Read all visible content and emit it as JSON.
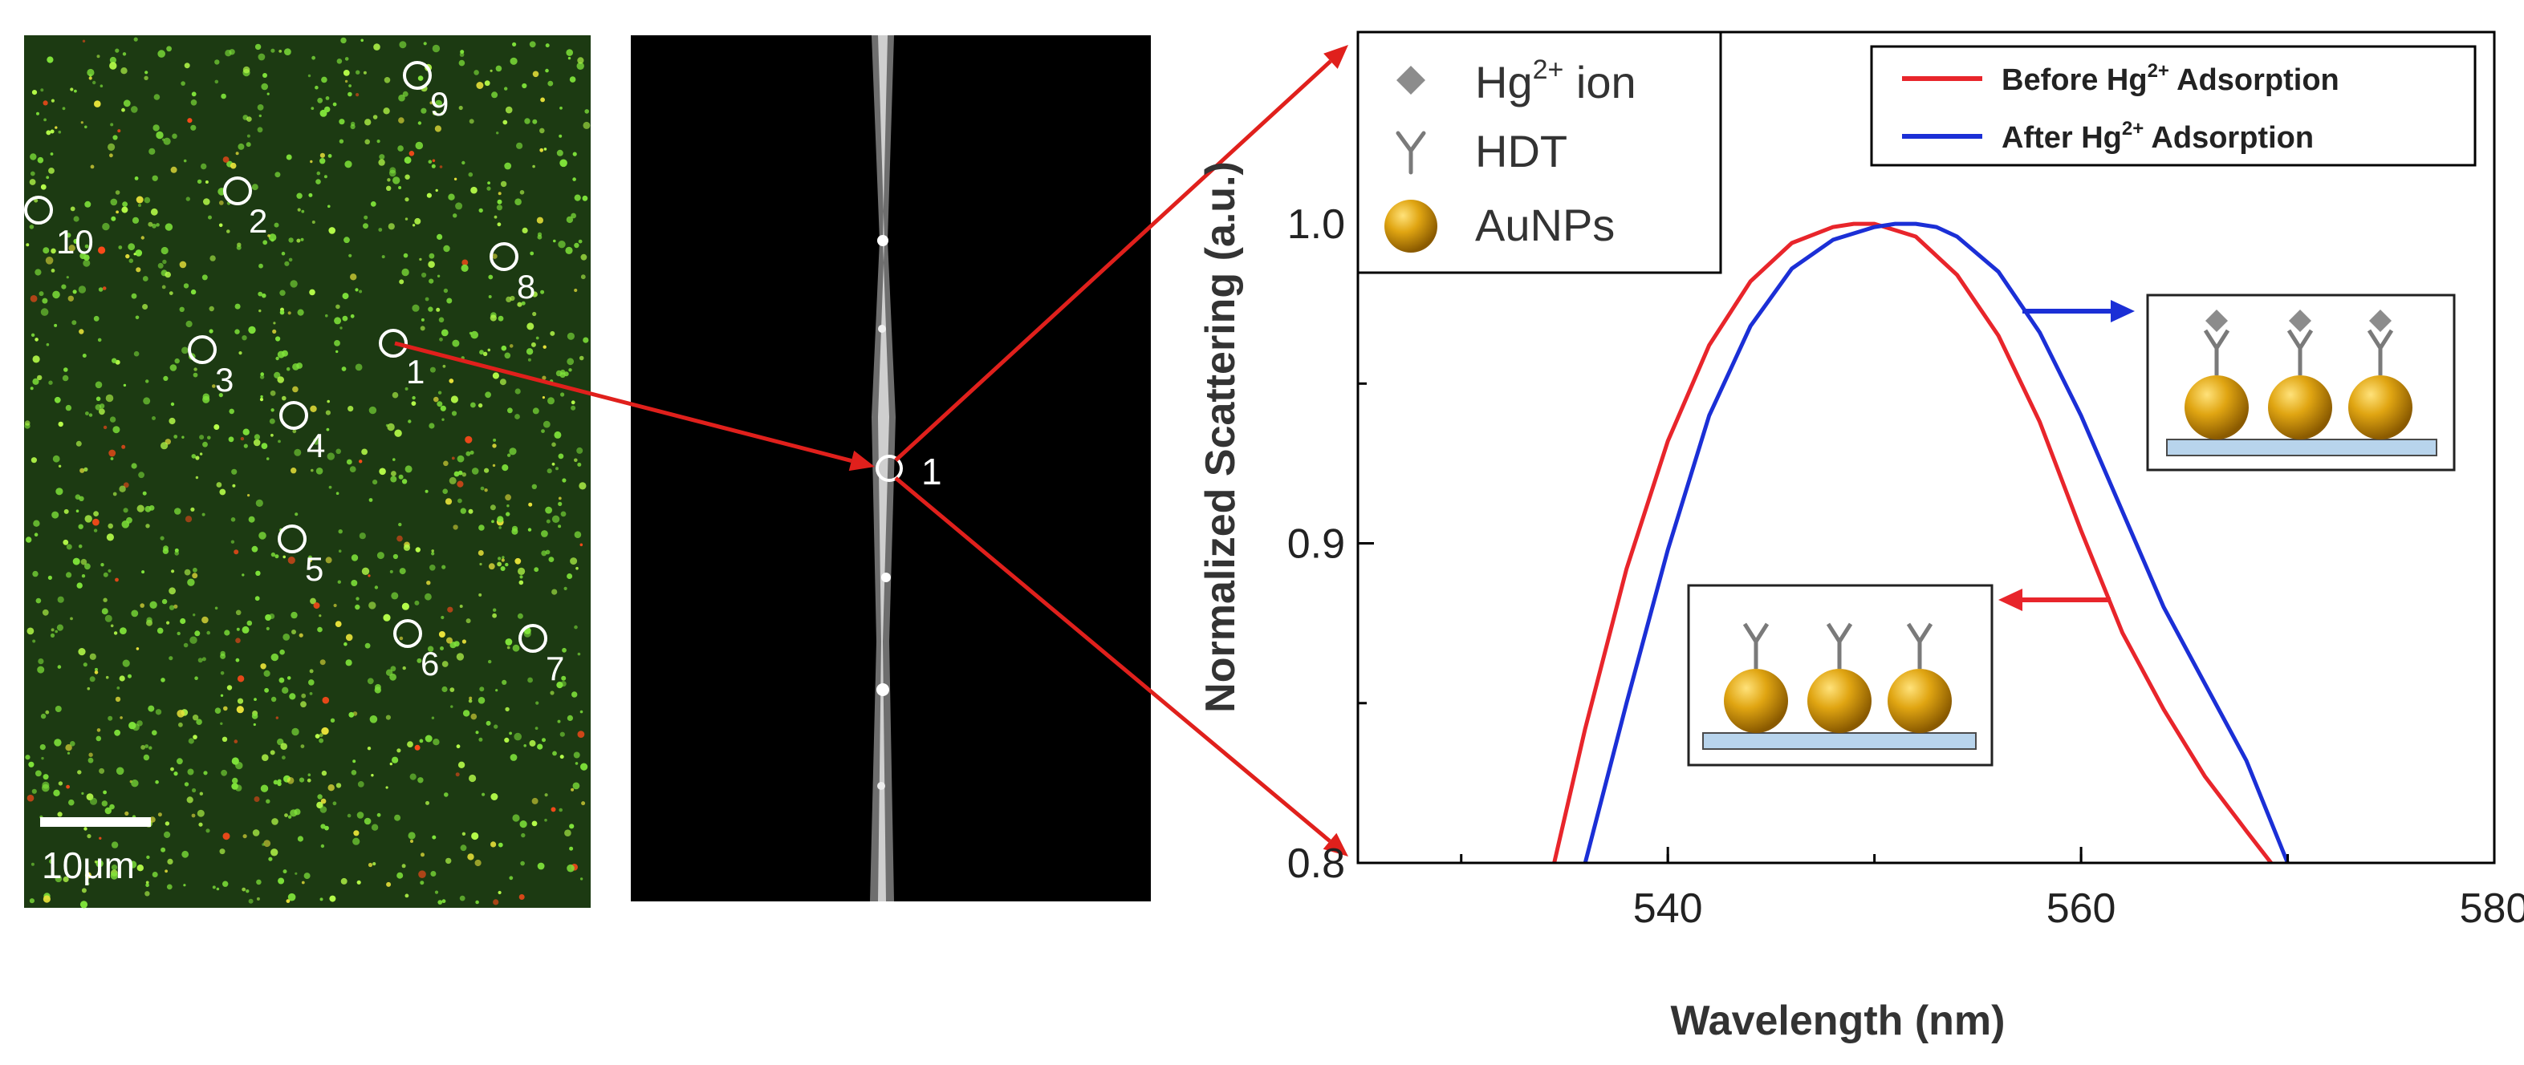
{
  "micrograph": {
    "scale_bar_label": "10μm",
    "particle_labels": [
      "1",
      "2",
      "3",
      "4",
      "5",
      "6",
      "7",
      "8",
      "9",
      "10"
    ],
    "background_color": "#1c3a12",
    "dot_colors": [
      "#7fe33a",
      "#b8ff4a",
      "#e8e23a",
      "#ff4a1a"
    ]
  },
  "darkfield": {
    "selected_label": "1",
    "background_color": "#000000"
  },
  "connector_color": "#e0201c",
  "legend_symbols": [
    {
      "label": "Hg²⁺ ion",
      "label_base": "Hg",
      "label_sup": "2+",
      "label_rest": " ion",
      "icon": "diamond-icon"
    },
    {
      "label": "HDT",
      "icon": "y-linker-icon"
    },
    {
      "label": "AuNPs",
      "icon": "gold-sphere-icon"
    }
  ],
  "chart_data": {
    "type": "line",
    "xlabel": "Wavelength (nm)",
    "ylabel": "Normalized Scattering (a.u.)",
    "xlim": [
      525,
      580
    ],
    "ylim": [
      0.8,
      1.06
    ],
    "xticks": [
      540,
      560,
      580
    ],
    "yticks": [
      0.8,
      0.9,
      1.0
    ],
    "xtick_labels": [
      "540",
      "560",
      "580"
    ],
    "ytick_labels": [
      "0.8",
      "0.9",
      "1.0"
    ],
    "grid": false,
    "legend_position": "top-right",
    "series": [
      {
        "name": "Before Hg²⁺ Adsorption",
        "color": "#e8252b",
        "x": [
          534.5,
          536,
          538,
          540,
          542,
          544,
          546,
          548,
          549,
          550,
          551,
          552,
          554,
          556,
          558,
          560,
          562,
          564,
          566,
          568,
          569.2
        ],
        "y": [
          0.8,
          0.842,
          0.892,
          0.932,
          0.962,
          0.982,
          0.994,
          0.999,
          1.0,
          1.0,
          0.998,
          0.996,
          0.984,
          0.965,
          0.938,
          0.904,
          0.872,
          0.848,
          0.827,
          0.81,
          0.8
        ]
      },
      {
        "name": "After Hg²⁺ Adsorption",
        "color": "#1b2fd6",
        "x": [
          536,
          538,
          540,
          542,
          544,
          546,
          548,
          550,
          551,
          552,
          553,
          554,
          556,
          558,
          560,
          562,
          564,
          566,
          568,
          570
        ],
        "y": [
          0.8,
          0.85,
          0.898,
          0.94,
          0.968,
          0.986,
          0.995,
          0.999,
          1.0,
          1.0,
          0.999,
          0.996,
          0.985,
          0.966,
          0.94,
          0.91,
          0.88,
          0.856,
          0.832,
          0.8
        ]
      }
    ],
    "legend": [
      {
        "base": "Before Hg",
        "sup": "2+",
        "rest": " Adsorption"
      },
      {
        "base": "After Hg",
        "sup": "2+",
        "rest": " Adsorption"
      }
    ]
  }
}
